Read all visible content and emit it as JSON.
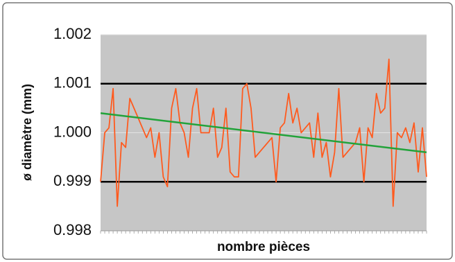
{
  "chart_data": {
    "type": "line",
    "ylabel": "ø diamètre (mm)",
    "xlabel": "nombre pièces",
    "categories": [
      null,
      null,
      null,
      null,
      null,
      null,
      null,
      null,
      null,
      null,
      null,
      null,
      null,
      null,
      null,
      null,
      null,
      null,
      null,
      null,
      null,
      null,
      null,
      null,
      null,
      null,
      null,
      null,
      null,
      null,
      null,
      null,
      null,
      null,
      null,
      null,
      null,
      null,
      null,
      null,
      null,
      null,
      null,
      null,
      null,
      null,
      null,
      null,
      null,
      null,
      null,
      null,
      null,
      null,
      null,
      null,
      null,
      null,
      null,
      null,
      null,
      null,
      null,
      null,
      null,
      null,
      null,
      null,
      null,
      null,
      null,
      null,
      null,
      null,
      null,
      null,
      null,
      null,
      null
    ],
    "series": [
      {
        "color": "#ff5a1e",
        "values": [
          0.999,
          1.0,
          1.0001,
          1.0009,
          0.9985,
          0.9998,
          0.9997,
          1.0007,
          1.0005,
          1.0003,
          1.0001,
          0.9999,
          1.0001,
          0.9995,
          1.0,
          0.9991,
          0.9989,
          1.0005,
          1.0009,
          1.0002,
          1.0,
          0.9995,
          1.0005,
          1.0009,
          1.0,
          1.0,
          1.0,
          1.0005,
          0.9995,
          0.9997,
          1.0005,
          0.9992,
          0.9991,
          0.9991,
          1.0009,
          1.001,
          1.0005,
          0.9995,
          0.9996,
          0.9997,
          0.9998,
          0.9999,
          0.999,
          1.0001,
          1.0002,
          1.0008,
          1.0002,
          1.0005,
          1.0,
          1.0001,
          1.0002,
          0.9995,
          1.0004,
          0.9995,
          0.9998,
          0.9991,
          0.9996,
          1.0009,
          0.9995,
          0.9996,
          0.9997,
          0.9998,
          1.0001,
          0.999,
          1.0001,
          0.9999,
          1.0008,
          1.0004,
          1.0005,
          1.0015,
          0.9985,
          1.0,
          0.9999,
          1.0001,
          0.9998,
          1.0002,
          0.9992,
          1.0001,
          0.9991
        ]
      }
    ],
    "trend": {
      "color": "#22a33a",
      "values": [
        1.0004,
        0.9996
      ]
    },
    "limits": {
      "color": "#000000",
      "values": [
        0.999,
        1.001
      ]
    },
    "ylim": [
      0.998,
      1.002
    ],
    "yticks": [
      0.998,
      0.999,
      {
        "value": 1.0,
        "label": "1.000"
      },
      1.001,
      1.002
    ],
    "grid": true
  }
}
